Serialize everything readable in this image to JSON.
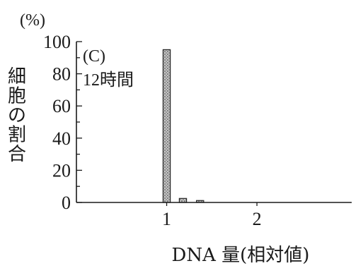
{
  "chart_data": {
    "type": "bar",
    "panel_label": "(C)",
    "condition": "12時間",
    "ylabel": "細胞の割合",
    "yunit": "(%)",
    "xlabel": "DNA 量(相対値)",
    "ylim": [
      0,
      100
    ],
    "yticks": [
      0,
      20,
      40,
      60,
      80,
      100
    ],
    "xlim": [
      0,
      3.05
    ],
    "xticks": [
      1,
      2
    ],
    "bar_width": 0.08,
    "bars": [
      {
        "x": 1.0,
        "value": 95
      },
      {
        "x": 1.18,
        "value": 2.5
      },
      {
        "x": 1.37,
        "value": 1.2
      }
    ],
    "grid": false,
    "colors": {
      "bar_fill": "#b8b8b8",
      "bar_stroke": "#222222",
      "axis": "#1a1a1a"
    }
  }
}
